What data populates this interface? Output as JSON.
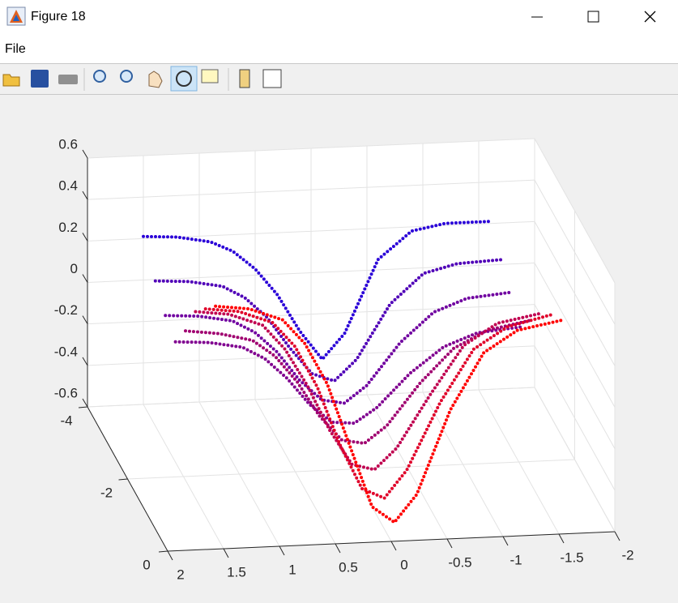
{
  "window": {
    "title": "Figure 18",
    "menu": [
      "File"
    ]
  },
  "chart_data": {
    "type": "scatter3d",
    "x": [
      1.5,
      1.2,
      0.9,
      0.7,
      0.5,
      0.3,
      0.1,
      -0.1,
      -0.3,
      -0.6,
      -0.9,
      -1.2,
      -1.6
    ],
    "series": [
      {
        "color": "#2a00d8",
        "y": -4,
        "values": [
          0.21,
          0.2,
          0.17,
          0.12,
          0.03,
          -0.1,
          -0.28,
          -0.42,
          -0.3,
          0.05,
          0.18,
          0.21,
          0.21
        ]
      },
      {
        "color": "#5000b8",
        "y": -3.4,
        "values": [
          0.1,
          0.09,
          0.06,
          0.0,
          -0.1,
          -0.25,
          -0.38,
          -0.42,
          -0.32,
          -0.06,
          0.08,
          0.12,
          0.13
        ]
      },
      {
        "color": "#7000a0",
        "y": -2.9,
        "values": [
          0.02,
          0.01,
          -0.02,
          -0.08,
          -0.18,
          -0.32,
          -0.42,
          -0.44,
          -0.36,
          -0.16,
          -0.02,
          0.04,
          0.06
        ]
      },
      {
        "color": "#800090",
        "y": -2.4,
        "values": [
          -0.02,
          -0.03,
          -0.06,
          -0.12,
          -0.22,
          -0.35,
          -0.44,
          -0.45,
          -0.38,
          -0.22,
          -0.1,
          -0.04,
          -0.02
        ]
      },
      {
        "color": "#a00070",
        "y": -1.9,
        "values": [
          0.12,
          0.1,
          0.06,
          -0.02,
          -0.15,
          -0.32,
          -0.44,
          -0.46,
          -0.38,
          -0.18,
          -0.02,
          0.06,
          0.1
        ]
      },
      {
        "color": "#c00050",
        "y": -1.4,
        "values": [
          0.3,
          0.28,
          0.22,
          0.1,
          -0.08,
          -0.3,
          -0.47,
          -0.5,
          -0.4,
          -0.15,
          0.08,
          0.18,
          0.22
        ]
      },
      {
        "color": "#e0002a",
        "y": -0.9,
        "values": [
          0.4,
          0.38,
          0.32,
          0.2,
          0.0,
          -0.28,
          -0.5,
          -0.55,
          -0.42,
          -0.1,
          0.15,
          0.25,
          0.3
        ]
      },
      {
        "color": "#ff0000",
        "y": -0.4,
        "values": [
          0.5,
          0.48,
          0.42,
          0.3,
          0.1,
          -0.2,
          -0.5,
          -0.58,
          -0.45,
          -0.05,
          0.22,
          0.32,
          0.36
        ]
      }
    ],
    "xlim": [
      -2,
      2
    ],
    "ylim": [
      -4,
      0
    ],
    "zlim": [
      -0.6,
      0.6
    ],
    "xticks": [
      -2,
      -1.5,
      -1,
      -0.5,
      0,
      0.5,
      1,
      1.5,
      2
    ],
    "yticks": [
      -4,
      -2,
      0
    ],
    "zticks": [
      -0.6,
      -0.4,
      -0.2,
      0,
      0.2,
      0.4,
      0.6
    ],
    "grid": true
  }
}
